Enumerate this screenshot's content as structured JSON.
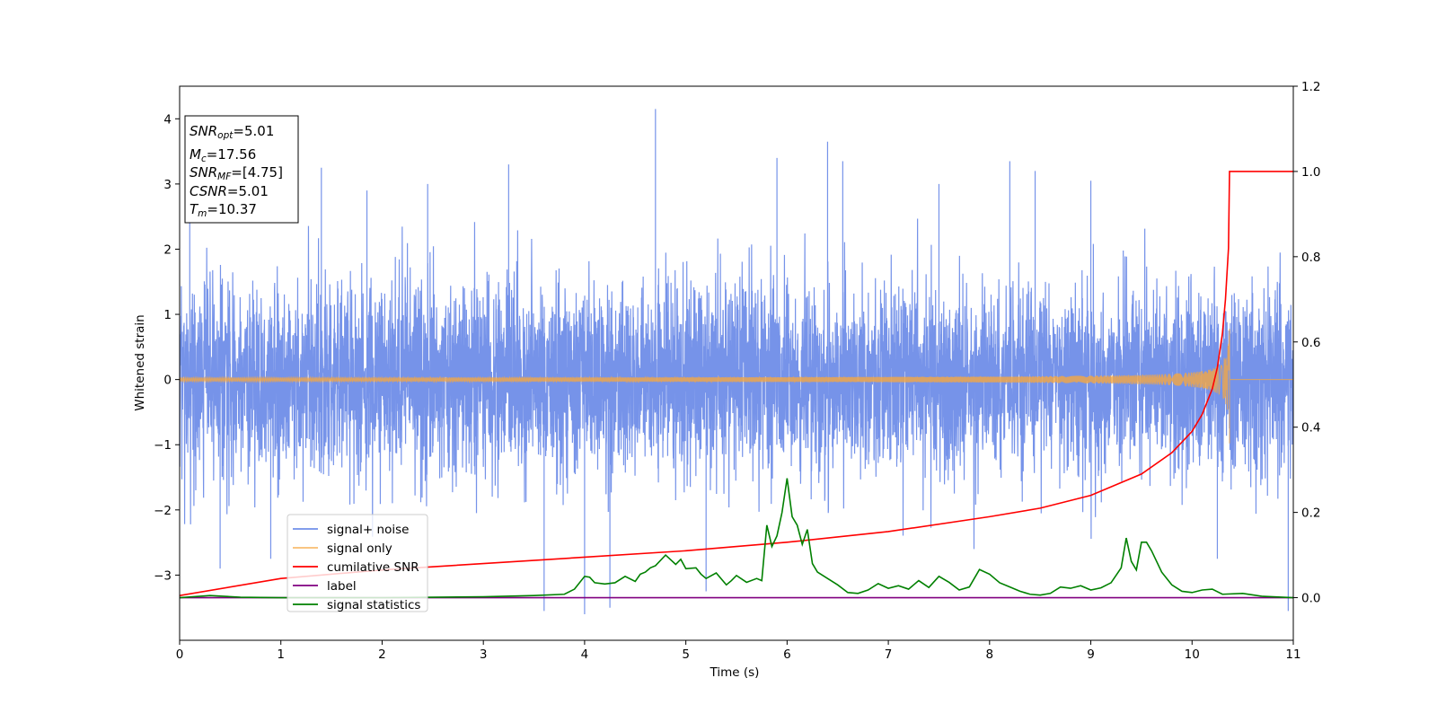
{
  "chart_data": {
    "type": "line",
    "xlabel": "Time (s)",
    "ylabel": "Whitened strain",
    "xlim": [
      0,
      11
    ],
    "ylim": [
      -4,
      4.5
    ],
    "y2lim": [
      -0.1,
      1.2
    ],
    "xticks": [
      "0",
      "1",
      "2",
      "3",
      "4",
      "5",
      "6",
      "7",
      "8",
      "9",
      "10",
      "11"
    ],
    "xtick_values": [
      0,
      1,
      2,
      3,
      4,
      5,
      6,
      7,
      8,
      9,
      10,
      11
    ],
    "yticks": [
      "−3",
      "−2",
      "−1",
      "0",
      "1",
      "2",
      "3",
      "4"
    ],
    "ytick_values": [
      -3,
      -2,
      -1,
      0,
      1,
      2,
      3,
      4
    ],
    "y2ticks": [
      "0.0",
      "0.2",
      "0.4",
      "0.6",
      "0.8",
      "1.0",
      "1.2"
    ],
    "y2tick_values": [
      0.0,
      0.2,
      0.4,
      0.6,
      0.8,
      1.0,
      1.2
    ],
    "info_box": {
      "snr_opt": {
        "symbol": "SNR",
        "sub": "opt",
        "value": "=5.01"
      },
      "mc": {
        "symbol": "M",
        "sub": "c",
        "value": "=17.56"
      },
      "snr_mf": {
        "symbol": "SNR",
        "sub": "MF",
        "value": "=[4.75]"
      },
      "csnr": {
        "symbol": "CSNR",
        "sub": "",
        "value": "=5.01"
      },
      "tm": {
        "symbol": "T",
        "sub": "m",
        "value": "=10.37"
      }
    },
    "legend_position": "lower-left",
    "series": [
      {
        "name": "signal+ noise",
        "color": "#4169e1",
        "axis": "left",
        "description_type": "noise",
        "sigma": 0.72,
        "spikes": [
          [
            0.1,
            2.85
          ],
          [
            0.4,
            -2.9
          ],
          [
            0.9,
            -2.75
          ],
          [
            1.4,
            3.25
          ],
          [
            1.85,
            2.9
          ],
          [
            2.45,
            3.0
          ],
          [
            3.25,
            3.3
          ],
          [
            3.6,
            -3.55
          ],
          [
            4.0,
            -3.6
          ],
          [
            4.25,
            -3.5
          ],
          [
            4.7,
            4.15
          ],
          [
            5.2,
            -3.25
          ],
          [
            5.9,
            3.4
          ],
          [
            6.4,
            3.65
          ],
          [
            6.55,
            3.35
          ],
          [
            7.5,
            3.0
          ],
          [
            8.2,
            3.35
          ],
          [
            8.45,
            3.2
          ],
          [
            9.0,
            3.05
          ],
          [
            10.25,
            -2.75
          ],
          [
            10.95,
            -3.55
          ]
        ]
      },
      {
        "name": "signal only",
        "color": "#f5a742",
        "axis": "left",
        "description_type": "chirp",
        "merger_time": 10.37,
        "peak_amplitude": 0.78
      },
      {
        "name": "cumilative SNR",
        "color": "#ff0000",
        "axis": "right",
        "x": [
          0,
          1,
          2,
          3,
          4,
          5,
          6,
          7,
          8,
          8.5,
          9,
          9.5,
          9.8,
          10.0,
          10.1,
          10.2,
          10.25,
          10.3,
          10.33,
          10.36,
          10.37,
          10.38,
          11
        ],
        "values": [
          0.005,
          0.045,
          0.065,
          0.08,
          0.095,
          0.11,
          0.13,
          0.155,
          0.19,
          0.21,
          0.24,
          0.29,
          0.34,
          0.39,
          0.43,
          0.49,
          0.54,
          0.62,
          0.7,
          0.82,
          1.0,
          1.0,
          1.0
        ]
      },
      {
        "name": "label",
        "color": "#800080",
        "axis": "right",
        "x": [
          0,
          11
        ],
        "values": [
          0,
          0
        ]
      },
      {
        "name": "signal statistics",
        "color": "#008000",
        "axis": "right",
        "x": [
          0,
          0.3,
          0.6,
          1,
          1.5,
          2,
          2.5,
          3,
          3.5,
          3.8,
          3.9,
          4.0,
          4.05,
          4.1,
          4.2,
          4.3,
          4.4,
          4.5,
          4.55,
          4.6,
          4.65,
          4.7,
          4.8,
          4.9,
          4.95,
          5.0,
          5.1,
          5.15,
          5.2,
          5.3,
          5.4,
          5.45,
          5.5,
          5.6,
          5.7,
          5.75,
          5.8,
          5.85,
          5.9,
          5.95,
          6.0,
          6.05,
          6.1,
          6.15,
          6.2,
          6.25,
          6.3,
          6.4,
          6.5,
          6.6,
          6.7,
          6.8,
          6.9,
          7.0,
          7.1,
          7.2,
          7.3,
          7.4,
          7.5,
          7.6,
          7.7,
          7.8,
          7.9,
          8.0,
          8.1,
          8.2,
          8.3,
          8.4,
          8.5,
          8.6,
          8.7,
          8.8,
          8.9,
          9.0,
          9.1,
          9.2,
          9.3,
          9.35,
          9.4,
          9.45,
          9.5,
          9.55,
          9.6,
          9.65,
          9.7,
          9.8,
          9.9,
          10.0,
          10.1,
          10.2,
          10.3,
          10.5,
          10.7,
          11
        ],
        "values": [
          0.0,
          0.005,
          0.001,
          0.0,
          0.0,
          0.0,
          0.001,
          0.002,
          0.005,
          0.008,
          0.02,
          0.05,
          0.048,
          0.035,
          0.032,
          0.035,
          0.05,
          0.038,
          0.055,
          0.06,
          0.07,
          0.075,
          0.1,
          0.078,
          0.09,
          0.068,
          0.07,
          0.055,
          0.045,
          0.058,
          0.03,
          0.04,
          0.052,
          0.036,
          0.045,
          0.04,
          0.17,
          0.12,
          0.145,
          0.2,
          0.28,
          0.19,
          0.17,
          0.125,
          0.16,
          0.08,
          0.06,
          0.045,
          0.03,
          0.012,
          0.01,
          0.018,
          0.033,
          0.022,
          0.028,
          0.02,
          0.04,
          0.024,
          0.05,
          0.036,
          0.018,
          0.025,
          0.066,
          0.055,
          0.035,
          0.025,
          0.015,
          0.008,
          0.006,
          0.01,
          0.025,
          0.022,
          0.028,
          0.018,
          0.023,
          0.035,
          0.07,
          0.14,
          0.085,
          0.065,
          0.13,
          0.13,
          0.11,
          0.085,
          0.06,
          0.03,
          0.015,
          0.012,
          0.018,
          0.02,
          0.008,
          0.01,
          0.003,
          0.0
        ]
      }
    ]
  }
}
